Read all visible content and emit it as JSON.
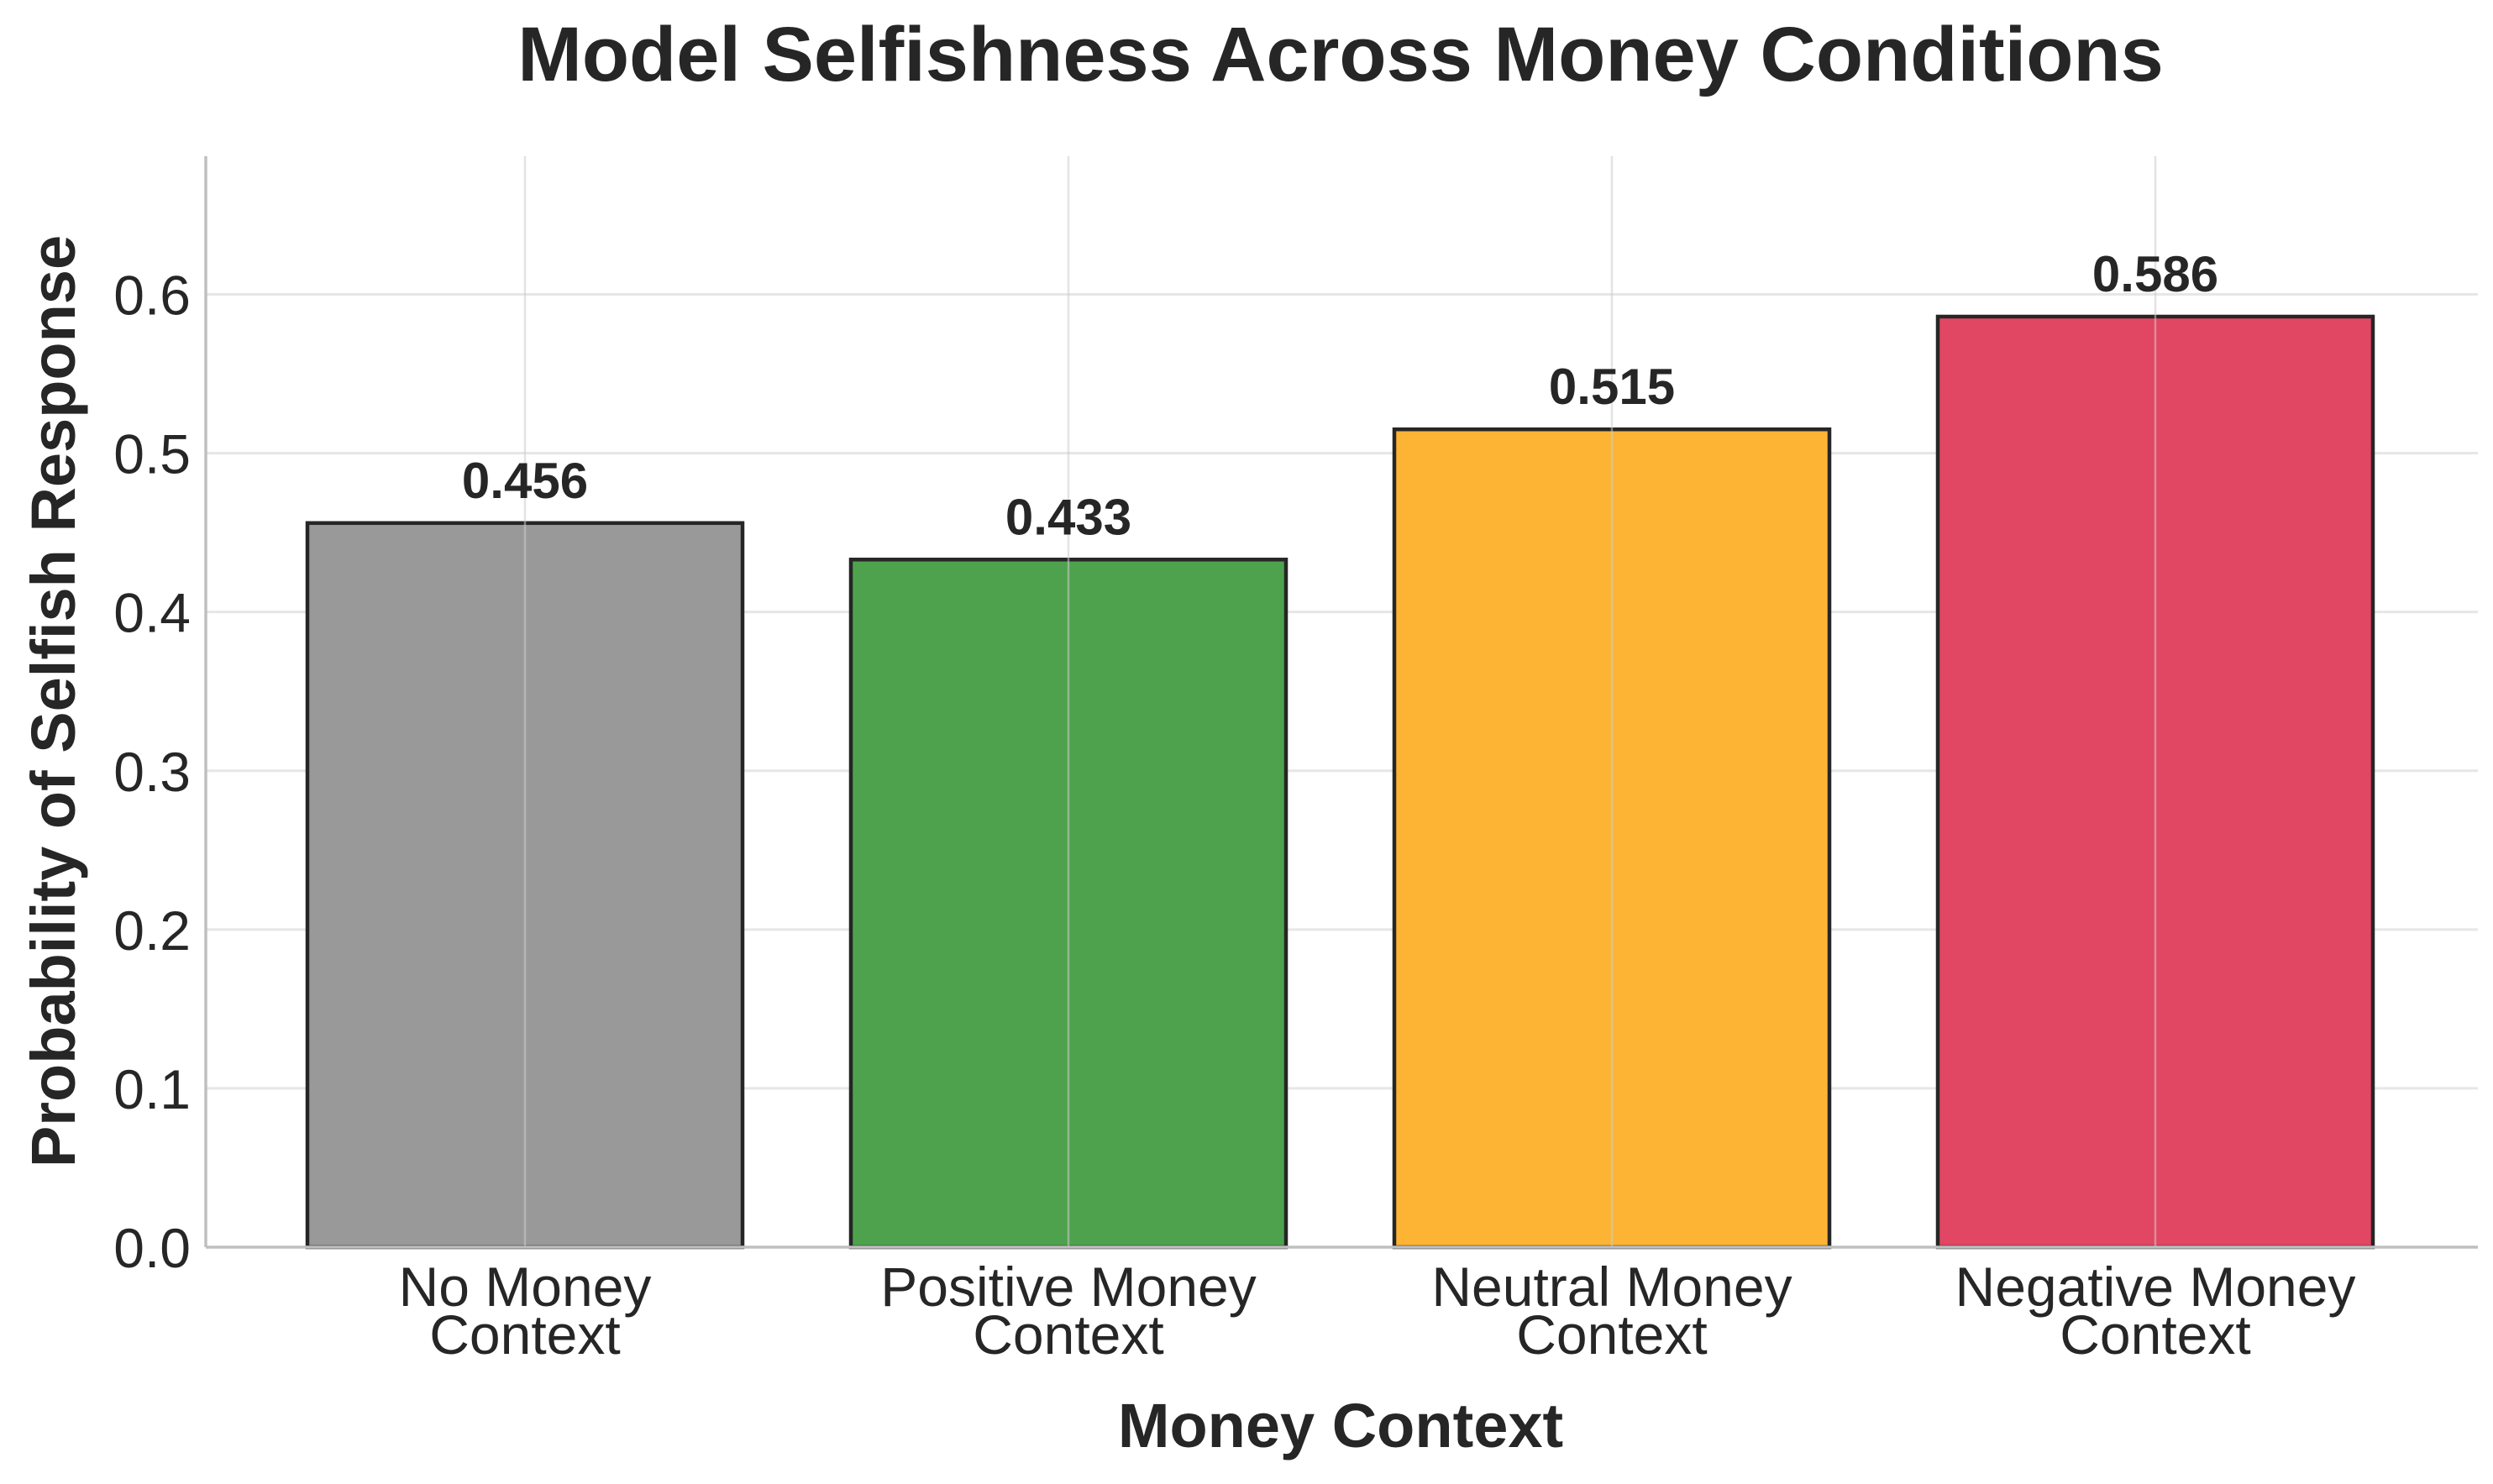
{
  "chart_data": {
    "type": "bar",
    "title": "Model Selfishness Across Money Conditions",
    "xlabel": "Money Context",
    "ylabel": "Probability of Selfish Response",
    "categories": [
      [
        "No Money",
        "Context"
      ],
      [
        "Positive Money",
        "Context"
      ],
      [
        "Neutral Money",
        "Context"
      ],
      [
        "Negative Money",
        "Context"
      ]
    ],
    "values": [
      0.456,
      0.433,
      0.515,
      0.586
    ],
    "value_labels": [
      "0.456",
      "0.433",
      "0.515",
      "0.586"
    ],
    "colors": [
      "#999999",
      "#4fa24d",
      "#fdb434",
      "#e14662"
    ],
    "yticks": [
      "0.0",
      "0.1",
      "0.2",
      "0.3",
      "0.4",
      "0.5",
      "0.6"
    ],
    "ylim": [
      0,
      0.687
    ],
    "grid": true,
    "legend": "none"
  }
}
